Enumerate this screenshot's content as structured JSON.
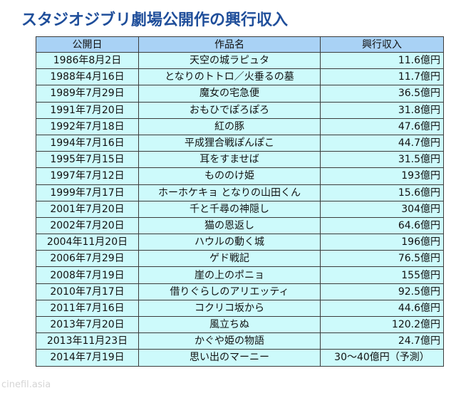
{
  "page": {
    "title": "スタジオジブリ劇場公開作の興行収入",
    "watermark": "cinefil.asia",
    "colors": {
      "title": "#1f4e9a",
      "header_bg": "#a9d2f5",
      "cell_bg": "#cdfafb",
      "border": "#3c3c3c"
    }
  },
  "table": {
    "headers": [
      "公開日",
      "作品名",
      "興行収入"
    ],
    "rows": [
      {
        "date": "1986年8月2日",
        "title": "天空の城ラピュタ",
        "revenue": "11.6億円"
      },
      {
        "date": "1988年4月16日",
        "title": "となりのトトロ／火垂るの墓",
        "revenue": "11.7億円"
      },
      {
        "date": "1989年7月29日",
        "title": "魔女の宅急便",
        "revenue": "36.5億円"
      },
      {
        "date": "1991年7月20日",
        "title": "おもひでぽろぽろ",
        "revenue": "31.8億円"
      },
      {
        "date": "1992年7月18日",
        "title": "紅の豚",
        "revenue": "47.6億円"
      },
      {
        "date": "1994年7月16日",
        "title": "平成狸合戦ぽんぽこ",
        "revenue": "44.7億円"
      },
      {
        "date": "1995年7月15日",
        "title": "耳をすませば",
        "revenue": "31.5億円"
      },
      {
        "date": "1997年7月12日",
        "title": "もののけ姫",
        "revenue": "193億円"
      },
      {
        "date": "1999年7月17日",
        "title": "ホーホケキョ となりの山田くん",
        "revenue": "15.6億円"
      },
      {
        "date": "2001年7月20日",
        "title": "千と千尋の神隠し",
        "revenue": "304億円"
      },
      {
        "date": "2002年7月20日",
        "title": "猫の恩返し",
        "revenue": "64.6億円"
      },
      {
        "date": "2004年11月20日",
        "title": "ハウルの動く城",
        "revenue": "196億円"
      },
      {
        "date": "2006年7月29日",
        "title": "ゲド戦記",
        "revenue": "76.5億円"
      },
      {
        "date": "2008年7月19日",
        "title": "崖の上のポニョ",
        "revenue": "155億円"
      },
      {
        "date": "2010年7月17日",
        "title": "借りぐらしのアリエッティ",
        "revenue": "92.5億円"
      },
      {
        "date": "2011年7月16日",
        "title": "コクリコ坂から",
        "revenue": "44.6億円"
      },
      {
        "date": "2013年7月20日",
        "title": "風立ちぬ",
        "revenue": "120.2億円"
      },
      {
        "date": "2013年11月23日",
        "title": "かぐや姫の物語",
        "revenue": "24.7億円"
      },
      {
        "date": "2014年7月19日",
        "title": "思い出のマーニー",
        "revenue": "30～40億円（予測）"
      }
    ]
  }
}
